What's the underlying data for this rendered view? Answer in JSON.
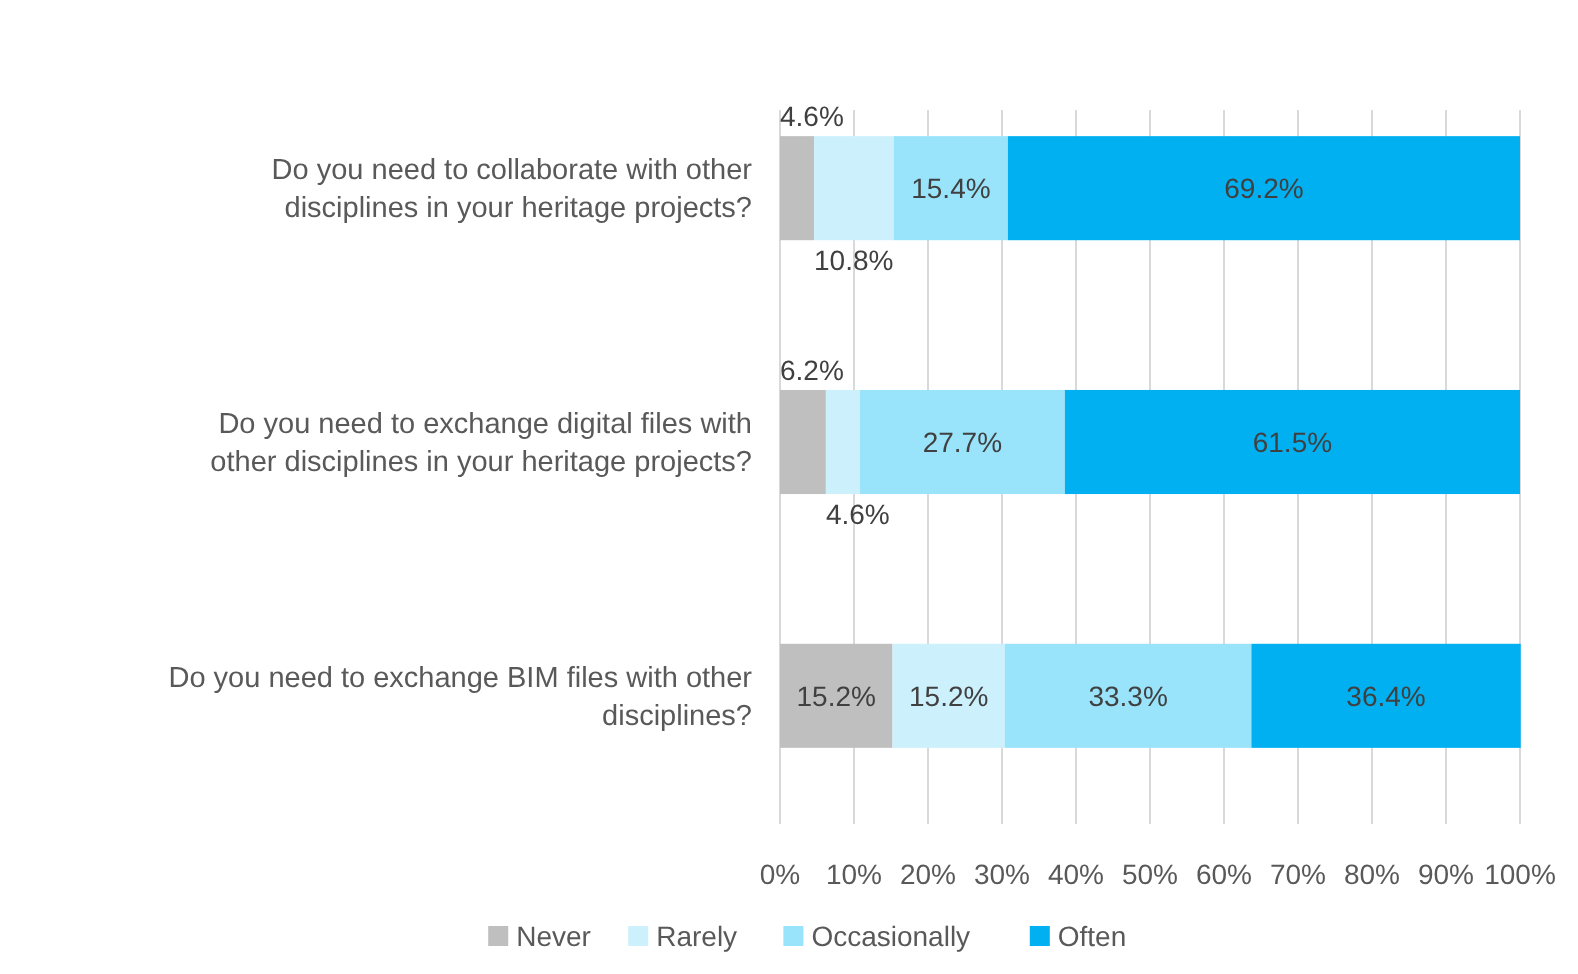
{
  "chart_data": {
    "type": "bar",
    "orientation": "horizontal",
    "stacked": true,
    "categories": [
      "Do you need to collaborate with other disciplines in your heritage projects?",
      "Do you need to exchange digital files with other disciplines in your heritage projects?",
      "Do you need to exchange BIM files with other disciplines?"
    ],
    "series": [
      {
        "name": "Never",
        "color": "#bfbfbf",
        "values": [
          4.6,
          6.2,
          15.2
        ],
        "value_labels": [
          "4.6%",
          "6.2%",
          "15.2%"
        ]
      },
      {
        "name": "Rarely",
        "color": "#ccf0fc",
        "values": [
          10.8,
          4.6,
          15.2
        ],
        "value_labels": [
          "10.8%",
          "4.6%",
          "15.2%"
        ]
      },
      {
        "name": "Occasionally",
        "color": "#99e3fb",
        "values": [
          15.4,
          27.7,
          33.3
        ],
        "value_labels": [
          "15.4%",
          "27.7%",
          "33.3%"
        ]
      },
      {
        "name": "Often",
        "color": "#00b0f0",
        "values": [
          69.2,
          61.5,
          36.4
        ],
        "value_labels": [
          "69.2%",
          "61.5%",
          "36.4%"
        ]
      }
    ],
    "xlim": [
      0,
      100
    ],
    "xticks": [
      {
        "value": 0,
        "label": "0%"
      },
      {
        "value": 10,
        "label": "10%"
      },
      {
        "value": 20,
        "label": "20%"
      },
      {
        "value": 30,
        "label": "30%"
      },
      {
        "value": 40,
        "label": "40%"
      },
      {
        "value": 50,
        "label": "50%"
      },
      {
        "value": 60,
        "label": "60%"
      },
      {
        "value": 70,
        "label": "70%"
      },
      {
        "value": 80,
        "label": "80%"
      },
      {
        "value": 90,
        "label": "90%"
      },
      {
        "value": 100,
        "label": "100%"
      }
    ],
    "grid": "x",
    "legend": "bottom"
  }
}
